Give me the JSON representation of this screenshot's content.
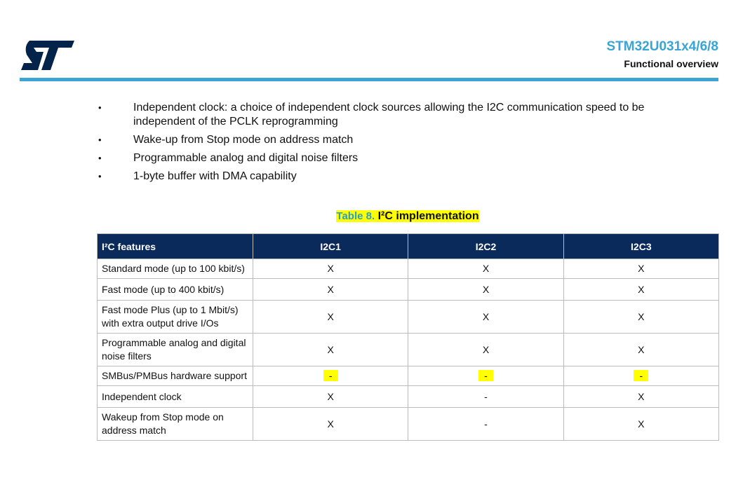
{
  "header": {
    "title": "STM32U031x4/6/8",
    "subtitle": "Functional overview"
  },
  "bullets": [
    "Independent clock: a choice of independent clock sources allowing the I2C communication speed to be independent of the PCLK reprogramming",
    "Wake-up from Stop mode on address match",
    "Programmable analog and digital noise filters",
    "1-byte buffer with DMA capability"
  ],
  "table": {
    "caption_number": "Table 8.",
    "caption_title": "I²C implementation",
    "columns": [
      "I²C features",
      "I2C1",
      "I2C2",
      "I2C3"
    ],
    "rows": [
      [
        "Standard mode (up to 100 kbit/s)",
        "X",
        "X",
        "X"
      ],
      [
        "Fast mode (up to 400 kbit/s)",
        "X",
        "X",
        "X"
      ],
      [
        "Fast mode Plus (up to 1 Mbit/s) with extra output drive I/Os",
        "X",
        "X",
        "X"
      ],
      [
        "Programmable analog and digital noise filters",
        "X",
        "X",
        "X"
      ],
      [
        "SMBus/PMBus hardware support",
        "-",
        "-",
        "-"
      ],
      [
        "Independent clock",
        "X",
        "-",
        "X"
      ],
      [
        "Wakeup from Stop mode on address match",
        "X",
        "-",
        "X"
      ]
    ]
  }
}
